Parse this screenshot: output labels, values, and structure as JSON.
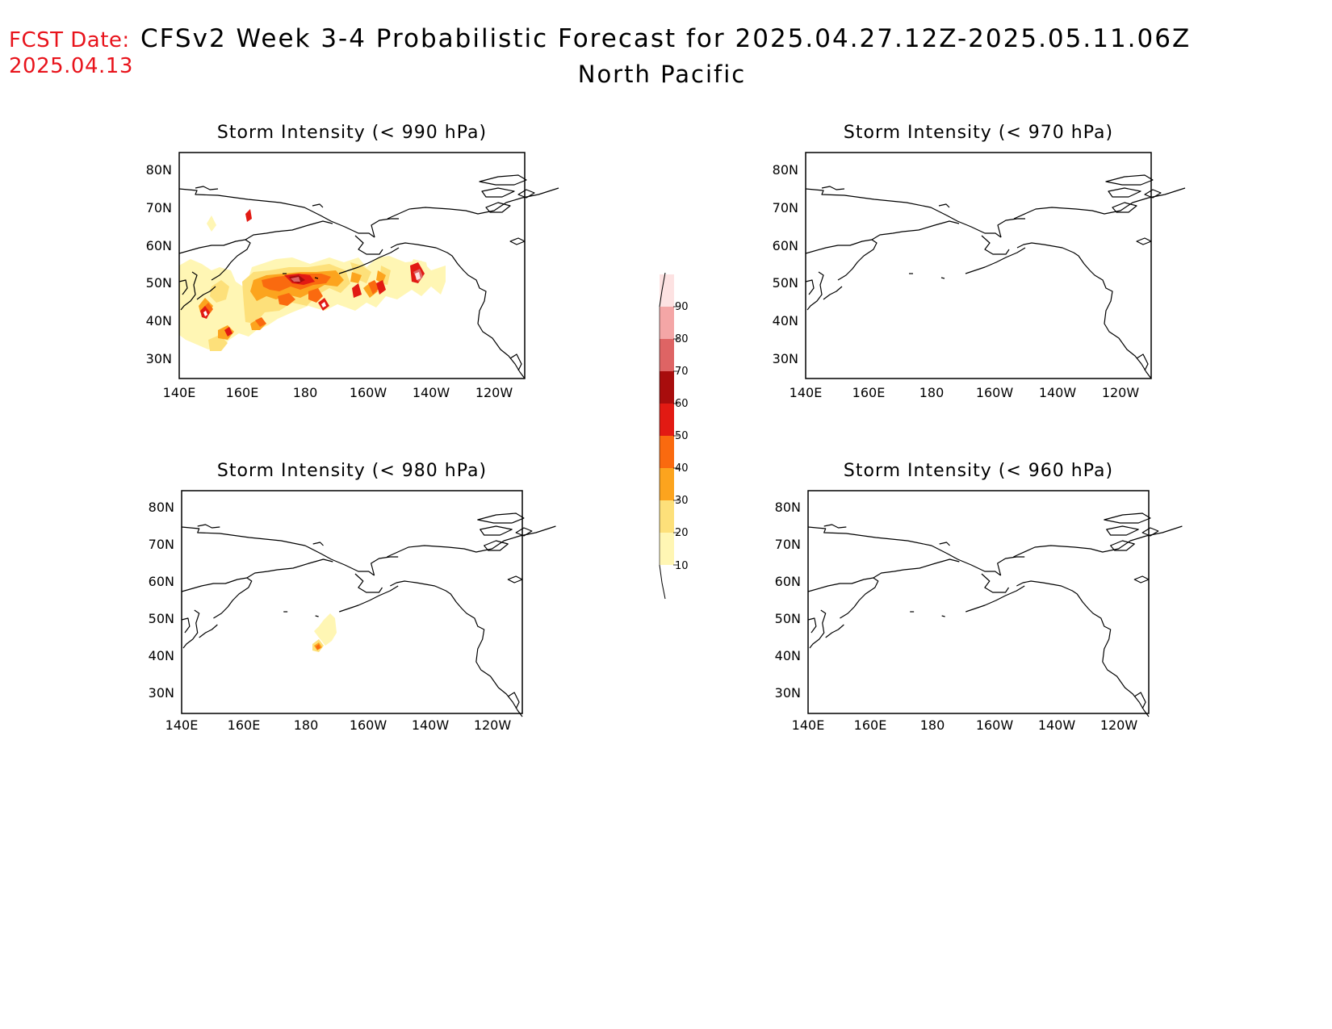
{
  "header": {
    "fcst_label": "FCST Date:",
    "fcst_date": "2025.04.13",
    "title": "CFSv2 Week 3-4 Probabilistic Forecast for 2025.04.27.12Z-2025.05.11.06Z",
    "subtitle": "North Pacific"
  },
  "axes": {
    "lat_labels": [
      "80N",
      "70N",
      "60N",
      "50N",
      "40N",
      "30N"
    ],
    "lon_labels": [
      "140E",
      "160E",
      "180",
      "160W",
      "140W",
      "120W"
    ]
  },
  "panels": [
    {
      "id": "p990",
      "title": "Storm Intensity (< 990 hPa)"
    },
    {
      "id": "p970",
      "title": "Storm Intensity (< 970 hPa)"
    },
    {
      "id": "p980",
      "title": "Storm Intensity (< 980 hPa)"
    },
    {
      "id": "p960",
      "title": "Storm Intensity (< 960 hPa)"
    }
  ],
  "colorbar": {
    "levels": [
      "10",
      "20",
      "30",
      "40",
      "50",
      "60",
      "70",
      "80",
      "90"
    ],
    "colors": [
      "#fff6b4",
      "#fde07a",
      "#fca41e",
      "#fa6a0f",
      "#e21a13",
      "#a80d0d",
      "#de6464",
      "#f4a6a6",
      "#fde2e2"
    ]
  }
}
